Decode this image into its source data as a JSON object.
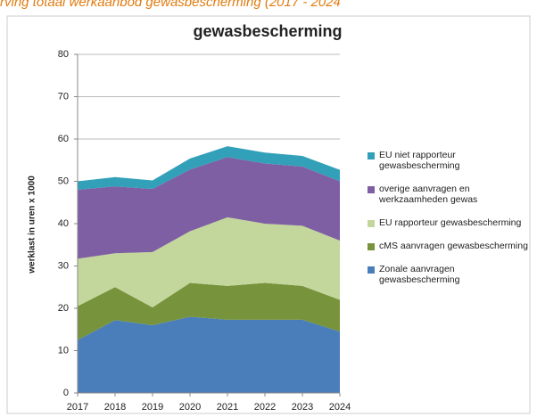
{
  "header": "rving totaal werkaanbod gewasbescherming (2017 - 2024",
  "chart_data": {
    "type": "stacked_area",
    "title": "gewasbescherming",
    "y_label": "werklast in  uren x 1000",
    "categories": [
      "2017",
      "2018",
      "2019",
      "2020",
      "2021",
      "2022",
      "2023",
      "2024"
    ],
    "ylim": [
      0,
      80
    ],
    "yticks": [
      0,
      10,
      20,
      30,
      40,
      50,
      60,
      70,
      80
    ],
    "grid": true,
    "legend": "right",
    "series": [
      {
        "name": "Zonale aanvragen gewasbescherming",
        "color": "#4a7ebb",
        "values": [
          12.5,
          17.2,
          16,
          18,
          17.3,
          17.3,
          17.3,
          14.5
        ]
      },
      {
        "name": "cMS aanvragen gewasbescherming",
        "color": "#77933c",
        "values": [
          8,
          7.8,
          4.2,
          8,
          8,
          8.7,
          8,
          7.5
        ]
      },
      {
        "name": "EU rapporteur gewasbescherming",
        "color": "#c3d69b",
        "values": [
          11.2,
          8,
          13.1,
          12.2,
          16.2,
          14,
          14.2,
          14
        ]
      },
      {
        "name": "overige aanvragen en werkzaamheden gewas",
        "color": "#7f5fa3",
        "values": [
          16.3,
          15.8,
          14.9,
          14.6,
          14.2,
          14.2,
          14,
          14
        ]
      },
      {
        "name": "EU niet rapporteur gewasbescherming",
        "color": "#31a0b8",
        "values": [
          2,
          2.2,
          2,
          2.6,
          2.6,
          2.6,
          2.5,
          2.7
        ]
      }
    ]
  }
}
